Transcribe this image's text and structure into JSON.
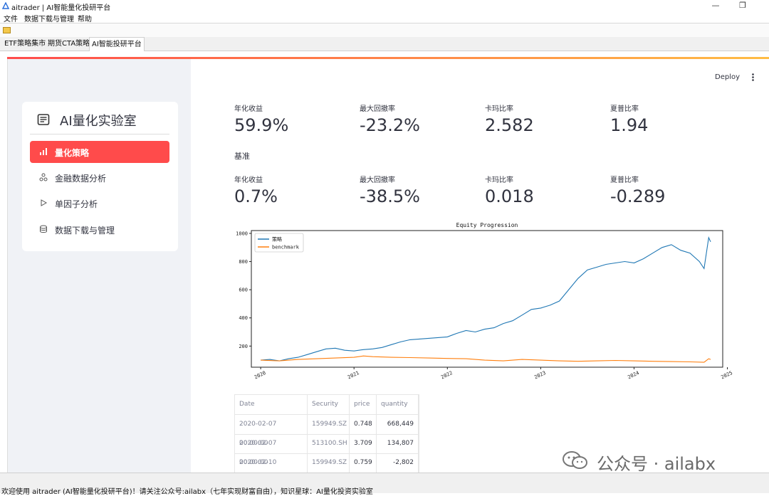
{
  "window": {
    "title": "aitrader | AI智能量化投研平台",
    "minimize": "—",
    "restore": "❐"
  },
  "menu": [
    "文件",
    "数据下载与管理",
    "帮助"
  ],
  "tabs": [
    "ETF策略集市",
    "期货CTA策略",
    "AI智能投研平台"
  ],
  "sidebar": {
    "title": "AI量化实验室",
    "items": [
      {
        "label": "量化策略",
        "icon": "bar-chart-icon",
        "active": true
      },
      {
        "label": "金融数据分析",
        "icon": "network-icon",
        "active": false
      },
      {
        "label": "单因子分析",
        "icon": "play-icon",
        "active": false
      },
      {
        "label": "数据下载与管理",
        "icon": "database-icon",
        "active": false
      }
    ]
  },
  "header": {
    "deploy": "Deploy",
    "more_icon": "kebab-menu-icon"
  },
  "metrics": [
    {
      "label": "年化收益",
      "value": "59.9%"
    },
    {
      "label": "最大回撤率",
      "value": "-23.2%"
    },
    {
      "label": "卡玛比率",
      "value": "2.582"
    },
    {
      "label": "夏普比率",
      "value": "1.94"
    }
  ],
  "benchmark": {
    "label": "基准",
    "metrics": [
      {
        "label": "年化收益",
        "value": "0.7%"
      },
      {
        "label": "最大回撤率",
        "value": "-38.5%"
      },
      {
        "label": "卡玛比率",
        "value": "0.018"
      },
      {
        "label": "夏普比率",
        "value": "-0.289"
      }
    ]
  },
  "chart_data": {
    "type": "line",
    "title": "Equity Progression",
    "xlabel": "",
    "ylabel": "",
    "x_ticks": [
      "2020",
      "2021",
      "2022",
      "2023",
      "2024",
      "2025"
    ],
    "y_ticks": [
      200,
      400,
      600,
      800,
      1000
    ],
    "xlim": [
      2019.9,
      2024.95
    ],
    "ylim": [
      50,
      1020
    ],
    "legend": "top-left",
    "grid": false,
    "series": [
      {
        "name": "策略",
        "color": "#1f77b4",
        "x": [
          2020.0,
          2020.1,
          2020.2,
          2020.3,
          2020.4,
          2020.5,
          2020.6,
          2020.7,
          2020.8,
          2020.9,
          2021.0,
          2021.1,
          2021.2,
          2021.3,
          2021.4,
          2021.5,
          2021.6,
          2021.7,
          2021.8,
          2021.9,
          2022.0,
          2022.1,
          2022.2,
          2022.3,
          2022.4,
          2022.5,
          2022.6,
          2022.7,
          2022.8,
          2022.9,
          2023.0,
          2023.1,
          2023.2,
          2023.3,
          2023.4,
          2023.5,
          2023.6,
          2023.7,
          2023.8,
          2023.9,
          2024.0,
          2024.1,
          2024.2,
          2024.3,
          2024.4,
          2024.5,
          2024.6,
          2024.7,
          2024.75,
          2024.8,
          2024.82
        ],
        "values": [
          100,
          105,
          95,
          110,
          120,
          140,
          160,
          180,
          185,
          170,
          165,
          175,
          180,
          190,
          210,
          230,
          245,
          250,
          255,
          260,
          265,
          290,
          310,
          300,
          320,
          330,
          360,
          380,
          420,
          460,
          470,
          490,
          520,
          600,
          680,
          740,
          760,
          780,
          790,
          800,
          790,
          820,
          860,
          900,
          920,
          880,
          860,
          800,
          750,
          970,
          940
        ]
      },
      {
        "name": "benchmark",
        "color": "#ff7f0e",
        "x": [
          2020.0,
          2020.2,
          2020.4,
          2020.6,
          2020.8,
          2021.0,
          2021.1,
          2021.2,
          2021.4,
          2021.6,
          2021.8,
          2022.0,
          2022.2,
          2022.4,
          2022.6,
          2022.8,
          2023.0,
          2023.2,
          2023.4,
          2023.6,
          2023.8,
          2024.0,
          2024.2,
          2024.4,
          2024.6,
          2024.75,
          2024.8,
          2024.82
        ],
        "values": [
          100,
          95,
          105,
          110,
          115,
          120,
          130,
          125,
          120,
          118,
          115,
          112,
          110,
          100,
          95,
          105,
          100,
          95,
          92,
          95,
          98,
          95,
          92,
          90,
          88,
          85,
          110,
          105
        ]
      }
    ]
  },
  "table": {
    "columns": [
      "Date",
      "Security",
      "price",
      "quantity"
    ],
    "rows": [
      [
        "2020-02-07 00:00:00",
        "159949.SZ",
        "0.748",
        "668,449"
      ],
      [
        "2020-02-07 00:00:00",
        "513100.SH",
        "3.709",
        "134,807"
      ],
      [
        "2020-02-10 00:00:00",
        "159949.SZ",
        "0.759",
        "-2,802"
      ],
      [
        "",
        "",
        "",
        ""
      ]
    ]
  },
  "status": "欢迎使用 aitrader (AI智能量化投研平台)！请关注公众号:ailabx（七年实现财富自由），知识星球：AI量化投资实验室",
  "watermark": {
    "text": "公众号 · ailabx",
    "icon": "wechat-icon"
  }
}
